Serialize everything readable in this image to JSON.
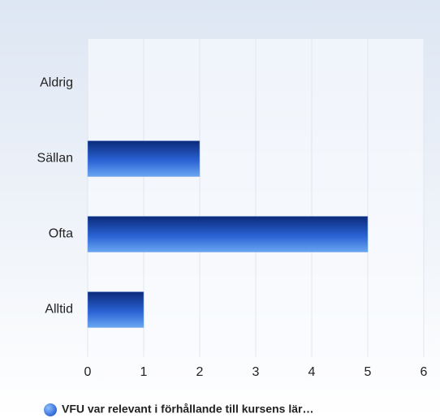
{
  "chart_data": {
    "type": "hbar",
    "categories": [
      "Aldrig",
      "Sällan",
      "Ofta",
      "Alltid"
    ],
    "series": [
      {
        "name": "VFU var relevant i förhållande till kursens lär…",
        "color": "#2a62d4",
        "values": [
          0,
          2,
          5,
          1
        ]
      }
    ],
    "xlim": [
      0,
      6
    ],
    "xticks": [
      0,
      1,
      2,
      3,
      4,
      5,
      6
    ],
    "grid": true,
    "legend": "bottom"
  }
}
